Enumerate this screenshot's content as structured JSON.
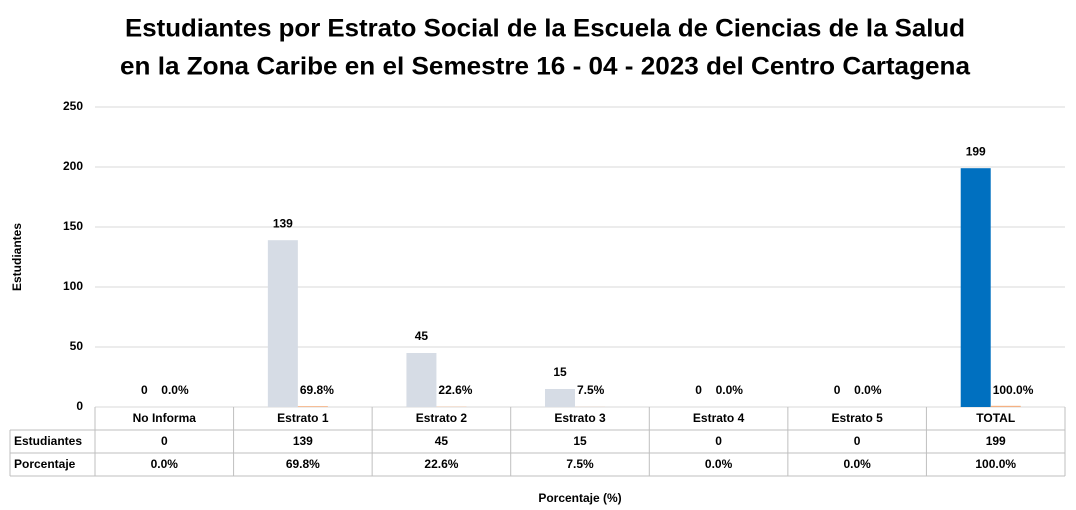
{
  "chart_data": {
    "type": "bar",
    "title": [
      "Estudiantes por Estrato Social de la Escuela de Ciencias de la Salud",
      "en la Zona Caribe en el Semestre 16 - 04 - 2023 del Centro Cartagena"
    ],
    "y_label": "Estudiantes",
    "x_label": "Porcentaje (%)",
    "categories": [
      "No Informa",
      "Estrato 1",
      "Estrato 2",
      "Estrato 3",
      "Estrato 4",
      "Estrato 5",
      "TOTAL"
    ],
    "series": [
      {
        "name": "Estudiantes",
        "color": "#d6dce5",
        "colors": [
          "#d6dce5",
          "#d6dce5",
          "#d6dce5",
          "#d6dce5",
          "#d6dce5",
          "#d6dce5",
          "#0070c0"
        ],
        "values": [
          0,
          139,
          45,
          15,
          0,
          0,
          199
        ]
      },
      {
        "name": "Porcentaje",
        "color": "#f4b183",
        "values": [
          0,
          0.698,
          0.226,
          0.075,
          0,
          0,
          1.0
        ],
        "value_labels": [
          "0.0%",
          "69.8%",
          "22.6%",
          "7.5%",
          "0.0%",
          "0.0%",
          "100.0%"
        ]
      }
    ],
    "ylim": [
      0,
      250
    ],
    "yticks": [
      0,
      50,
      100,
      150,
      200,
      250
    ],
    "grid": true
  }
}
